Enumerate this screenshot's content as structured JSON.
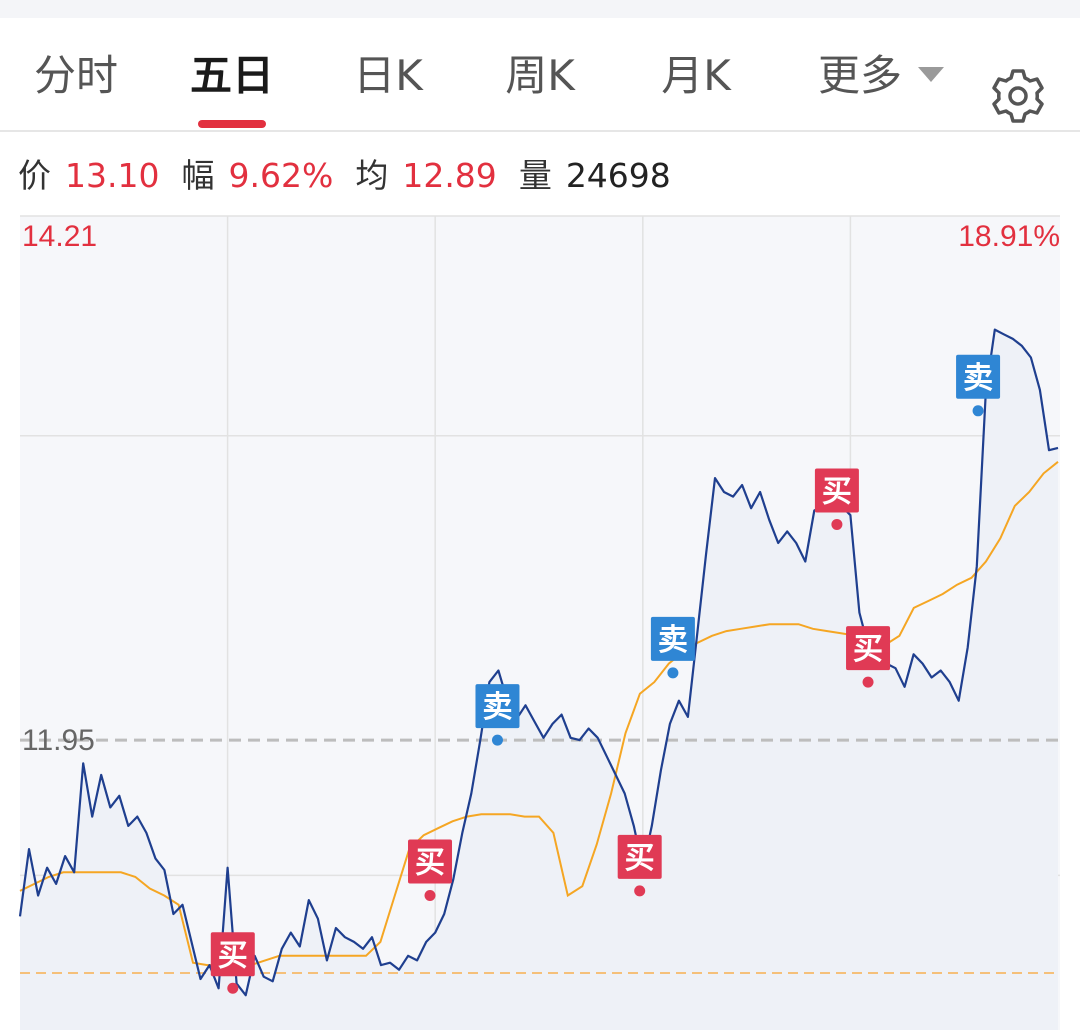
{
  "tabs": [
    {
      "label": "分时"
    },
    {
      "label": "五日"
    },
    {
      "label": "日K"
    },
    {
      "label": "周K"
    },
    {
      "label": "月K"
    }
  ],
  "active_tab": "五日",
  "more_label": "更多",
  "info": {
    "price_label": "价",
    "price": "13.10",
    "change_label": "幅",
    "change": "9.62%",
    "avg_label": "均",
    "avg": "12.89",
    "vol_label": "量",
    "vol": "24698"
  },
  "colors": {
    "price_line": "#1f3f8f",
    "avg_line": "#f5a623",
    "buy": "#e03a55",
    "sell": "#2f86d4",
    "up": "#e2303f"
  },
  "chart_data": {
    "type": "line",
    "y_axis": {
      "top_label": "14.21",
      "ref_label": "11.95",
      "top_pct_label": "18.91%"
    },
    "ylim": [
      10.7,
      14.21
    ],
    "reference_price": 11.95,
    "series": [
      {
        "values": [
          11.19,
          11.48,
          11.28,
          11.4,
          11.33,
          11.45,
          11.38,
          11.85,
          11.62,
          11.8,
          11.66,
          11.71,
          11.58,
          11.62,
          11.55,
          11.44,
          11.39,
          11.2,
          11.24,
          11.08,
          10.92,
          10.98,
          10.88,
          11.4,
          10.9,
          10.85,
          11.02,
          10.93,
          10.91,
          11.05,
          11.12,
          11.06,
          11.26,
          11.18,
          11.0,
          11.14,
          11.1,
          11.08,
          11.05,
          11.1,
          10.98,
          10.99,
          10.96,
          11.02,
          11.0,
          11.08,
          11.12,
          11.2,
          11.35,
          11.55,
          11.72,
          11.95,
          12.2,
          12.25,
          12.12,
          12.04,
          12.1,
          12.03,
          11.96,
          12.02,
          12.06,
          11.96,
          11.95,
          12.0,
          11.96,
          11.88,
          11.8,
          11.72,
          11.58,
          11.4,
          11.58,
          11.82,
          12.02,
          12.12,
          12.05,
          12.4,
          12.75,
          13.08,
          13.02,
          13.0,
          13.05,
          12.95,
          13.02,
          12.9,
          12.8,
          12.85,
          12.8,
          12.72,
          12.94,
          12.96,
          13.1,
          12.96,
          12.92,
          12.5,
          12.35,
          12.3,
          12.28,
          12.26,
          12.18,
          12.32,
          12.28,
          12.22,
          12.25,
          12.2,
          12.12,
          12.35,
          12.7,
          13.45,
          13.72,
          13.7,
          13.68,
          13.65,
          13.6,
          13.46,
          13.2,
          13.21
        ]
      },
      {
        "values": [
          11.3,
          11.33,
          11.36,
          11.38,
          11.38,
          11.38,
          11.38,
          11.38,
          11.36,
          11.31,
          11.28,
          11.24,
          10.99,
          10.98,
          10.98,
          10.98,
          10.98,
          11.0,
          11.02,
          11.02,
          11.02,
          11.02,
          11.02,
          11.02,
          11.02,
          11.08,
          11.28,
          11.48,
          11.54,
          11.57,
          11.6,
          11.62,
          11.63,
          11.63,
          11.63,
          11.62,
          11.62,
          11.55,
          11.28,
          11.32,
          11.5,
          11.72,
          11.98,
          12.15,
          12.2,
          12.28,
          12.33,
          12.37,
          12.4,
          12.42,
          12.43,
          12.44,
          12.45,
          12.45,
          12.45,
          12.43,
          12.42,
          12.41,
          12.4,
          12.38,
          12.36,
          12.4,
          12.52,
          12.55,
          12.58,
          12.62,
          12.65,
          12.72,
          12.82,
          12.96,
          13.02,
          13.1,
          13.15
        ]
      }
    ],
    "markers": [
      {
        "label": "买",
        "kind": "buy",
        "x": 0.205,
        "price": 10.88
      },
      {
        "label": "买",
        "kind": "buy",
        "x": 0.395,
        "price": 11.28
      },
      {
        "label": "卖",
        "kind": "sell",
        "x": 0.46,
        "price": 11.95
      },
      {
        "label": "买",
        "kind": "buy",
        "x": 0.597,
        "price": 11.3
      },
      {
        "label": "卖",
        "kind": "sell",
        "x": 0.629,
        "price": 12.24
      },
      {
        "label": "买",
        "kind": "buy",
        "x": 0.787,
        "price": 12.88
      },
      {
        "label": "买",
        "kind": "buy",
        "x": 0.817,
        "price": 12.2
      },
      {
        "label": "卖",
        "kind": "sell",
        "x": 0.923,
        "price": 13.37
      }
    ]
  }
}
